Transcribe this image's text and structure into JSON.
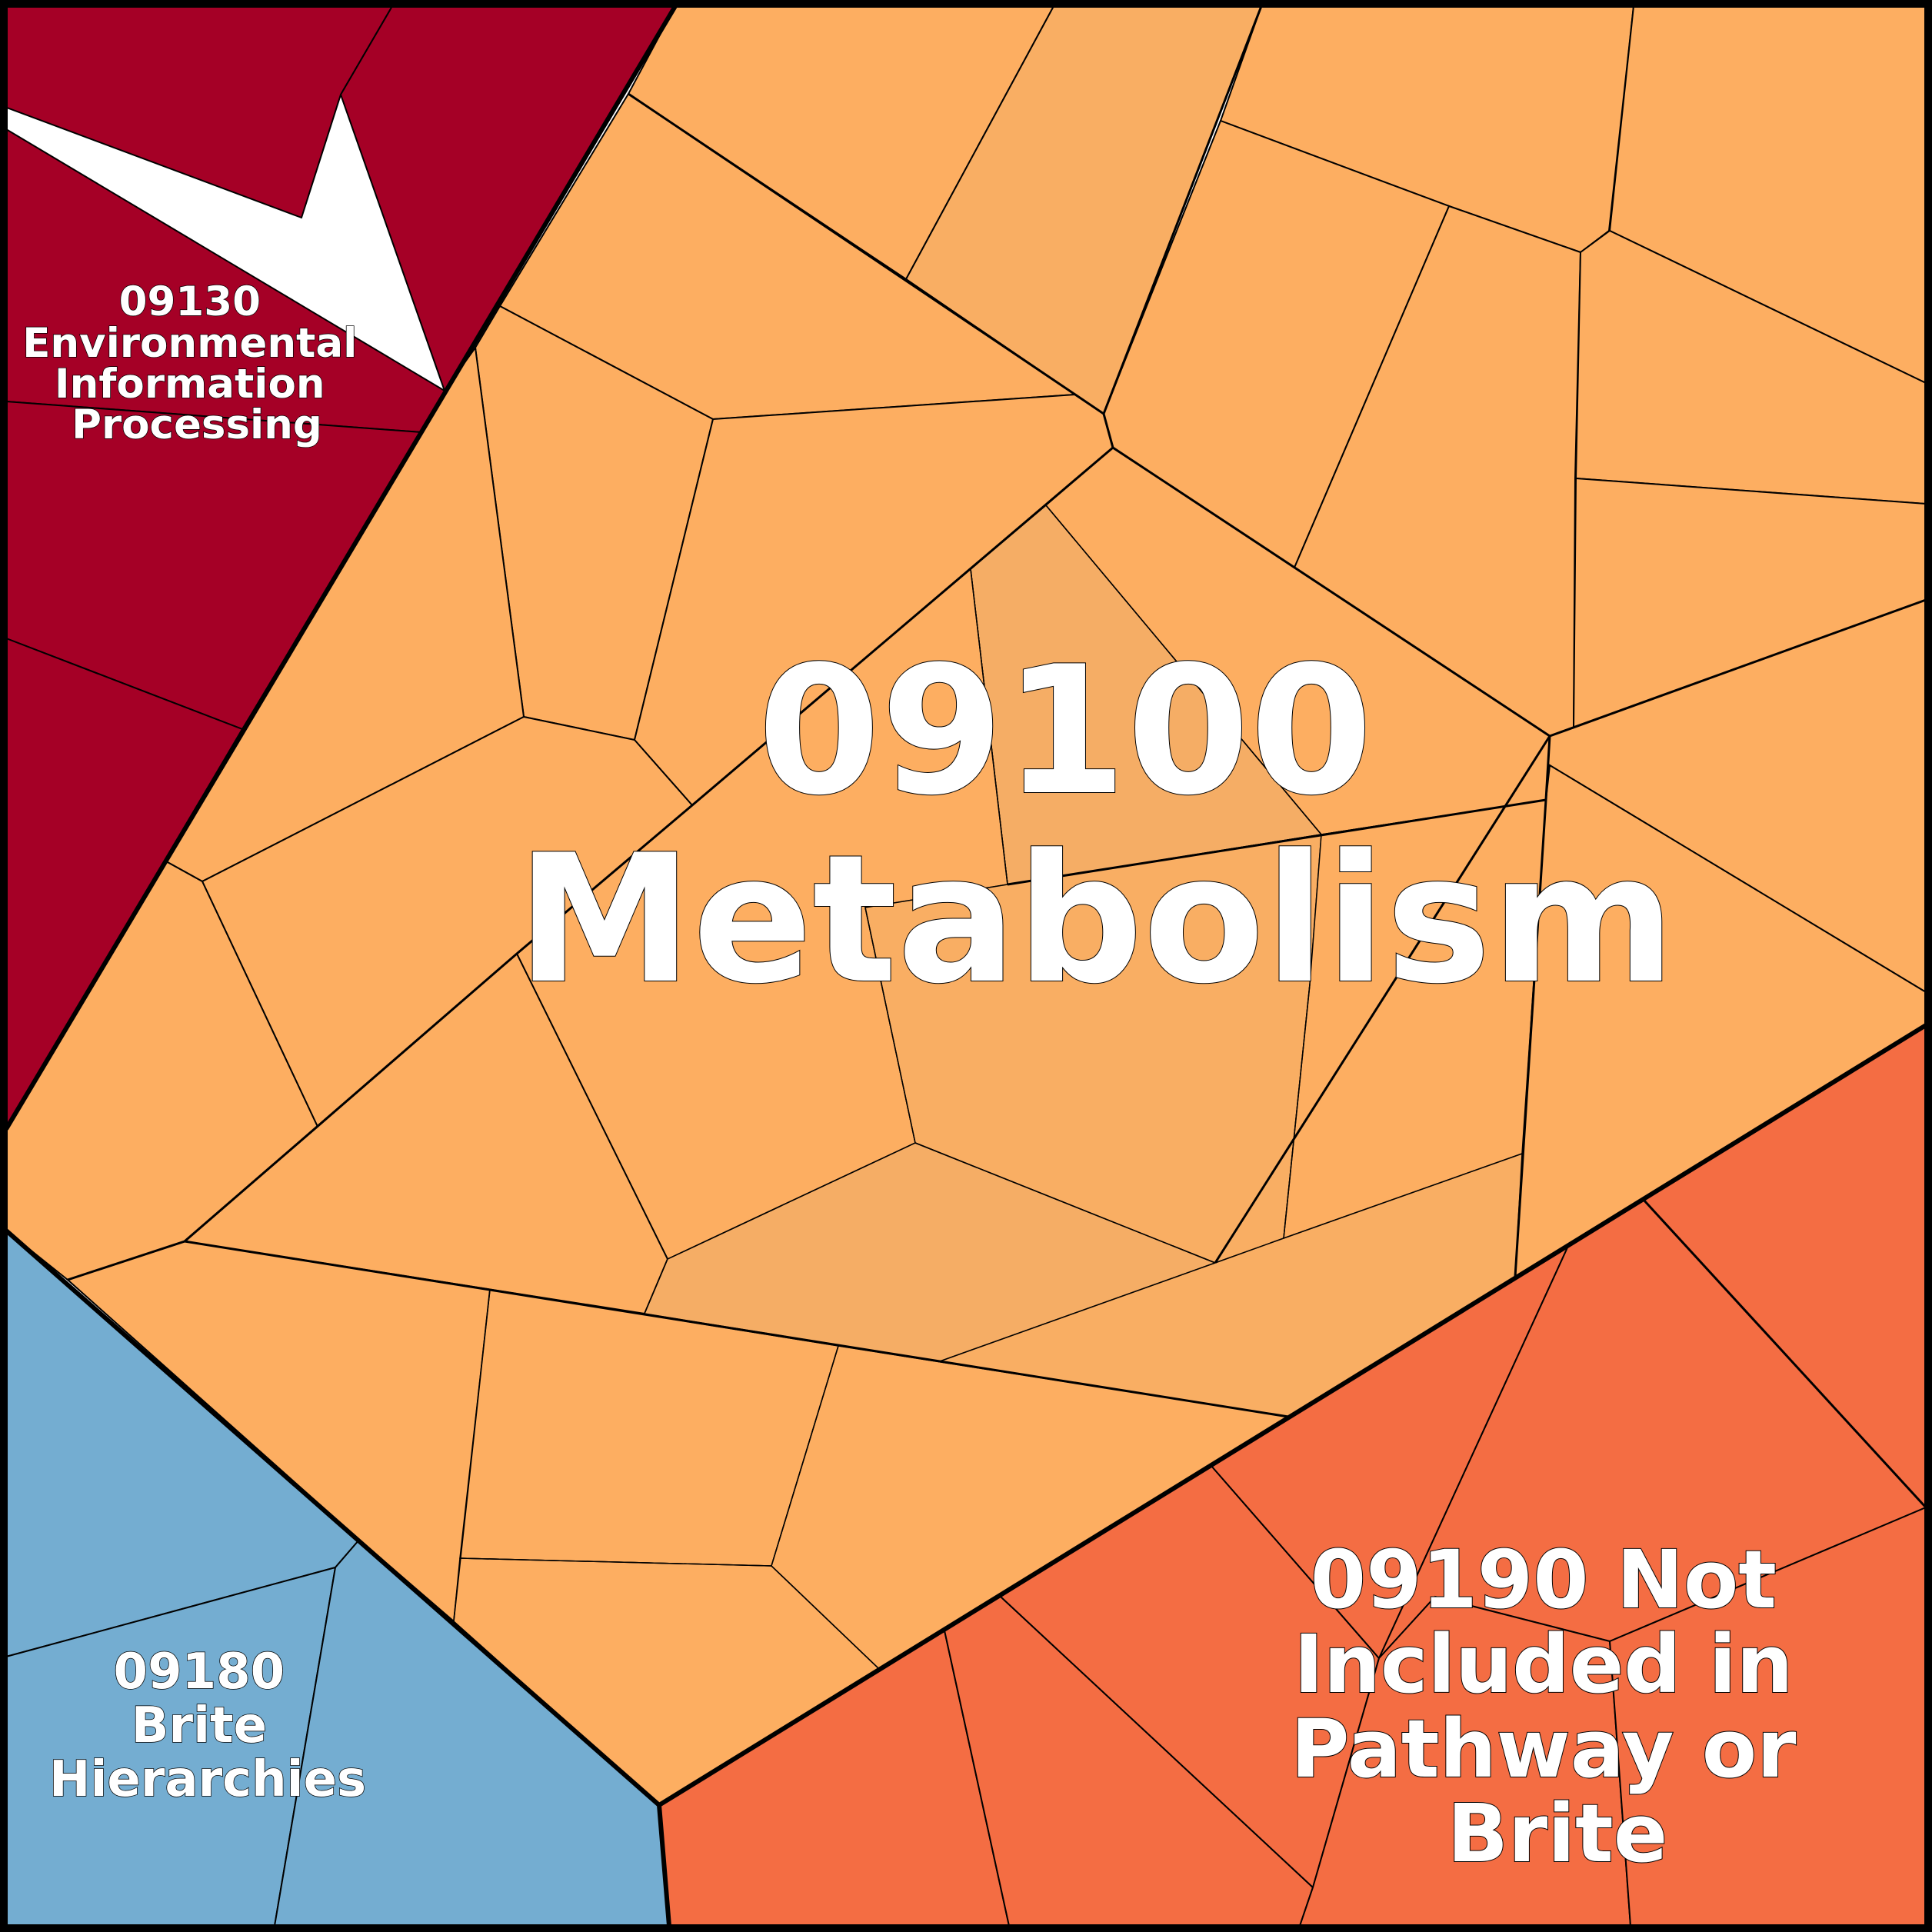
{
  "colors": {
    "environmental": "#a50026",
    "metabolism": "#fdae61",
    "metabolism_alt": "#f9ae63",
    "metabolism_center": "#f5ad65",
    "brite": "#74add1",
    "not_included": "#f46d43",
    "stroke": "#000000",
    "label_fill": "#ffffff"
  },
  "regions": [
    {
      "id": "09130",
      "lines": [
        "09130",
        "Environmental",
        "Information",
        "Processing"
      ]
    },
    {
      "id": "09100",
      "lines": [
        "09100",
        "Metabolism"
      ]
    },
    {
      "id": "09180",
      "lines": [
        "09180",
        "Brite",
        "Hierarchies"
      ]
    },
    {
      "id": "09190",
      "lines": [
        "09190 Not",
        "Included in",
        "Pathway or",
        "Brite"
      ]
    }
  ]
}
